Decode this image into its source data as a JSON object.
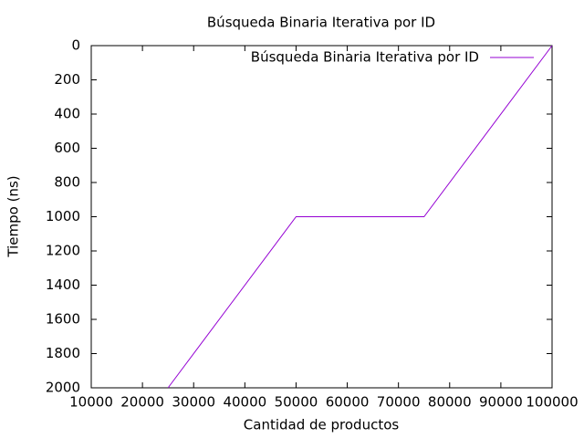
{
  "chart_data": {
    "type": "line",
    "title": "Búsqueda Binaria Iterativa por ID",
    "x_label": "Cantidad de productos",
    "y_label": "Tiempo (ns)",
    "x": [
      25000,
      50000,
      75000,
      100000
    ],
    "series": [
      {
        "name": "Búsqueda Binaria Iterativa por ID",
        "color": "#9400d3",
        "values": [
          2000,
          1000,
          1000,
          0
        ]
      }
    ],
    "xlim": [
      10000,
      100000
    ],
    "xticks": [
      10000,
      20000,
      30000,
      40000,
      50000,
      60000,
      70000,
      80000,
      90000,
      100000
    ],
    "ylim": [
      2000,
      0
    ],
    "yticks": [
      0,
      200,
      400,
      600,
      800,
      1000,
      1200,
      1400,
      1600,
      1800,
      2000
    ],
    "grid": false,
    "legend": "top-right"
  }
}
